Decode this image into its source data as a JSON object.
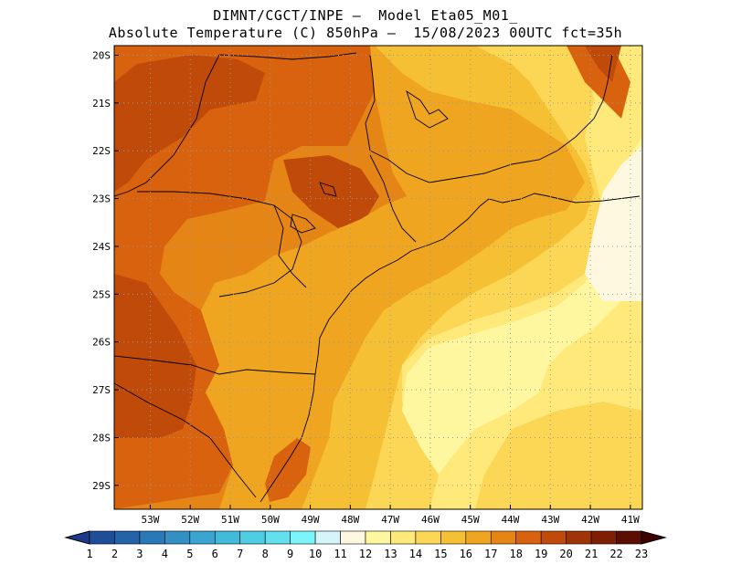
{
  "header": {
    "line1": "DIMNT/CGCT/INPE –  Model Eta05_M01_",
    "line2": "Absolute Temperature (C) 850hPa –  15/08/2023 00UTC fct=35h"
  },
  "axes": {
    "latitudes": [
      "20S",
      "21S",
      "22S",
      "23S",
      "24S",
      "25S",
      "26S",
      "27S",
      "28S",
      "29S"
    ],
    "longitudes": [
      "53W",
      "52W",
      "51W",
      "50W",
      "49W",
      "48W",
      "47W",
      "46W",
      "45W",
      "44W",
      "43W",
      "42W",
      "41W"
    ],
    "lat_range": [
      -29.5,
      -19.8
    ],
    "lon_range": [
      -53.9,
      -40.7
    ],
    "grid": "dotted"
  },
  "colorbar": {
    "labels": [
      "1",
      "2",
      "3",
      "4",
      "5",
      "6",
      "7",
      "8",
      "9",
      "10",
      "11",
      "12",
      "13",
      "14",
      "15",
      "16",
      "17",
      "18",
      "19",
      "20",
      "21",
      "22",
      "23"
    ],
    "colors": [
      "#1e3a8a",
      "#1f4e99",
      "#2563a8",
      "#2b78b6",
      "#3390c4",
      "#3aa5d0",
      "#42bad9",
      "#4ecde3",
      "#62e0ee",
      "#7af5fb",
      "#d6f5fb",
      "#fff8e1",
      "#fff6a0",
      "#ffe97a",
      "#fcd655",
      "#f5c033",
      "#f0a520",
      "#e58516",
      "#d8620e",
      "#c04a0a",
      "#a03406",
      "#7e1f04",
      "#5c0e02",
      "#3e0000"
    ]
  },
  "fields": {
    "background_color": "#e58516",
    "zones": [
      {
        "name": "west-interior-hot",
        "color": "#d8620e"
      },
      {
        "name": "south-hot-core",
        "color": "#c04a0a"
      },
      {
        "name": "mid-band",
        "color": "#f0a520"
      },
      {
        "name": "coastal-band",
        "color": "#f5c033"
      },
      {
        "name": "ocean-warm",
        "color": "#fcd655"
      },
      {
        "name": "ocean-mild",
        "color": "#ffe97a"
      },
      {
        "name": "ocean-cool",
        "color": "#fff6a0"
      },
      {
        "name": "east-coolest",
        "color": "#fff8e1"
      }
    ]
  }
}
